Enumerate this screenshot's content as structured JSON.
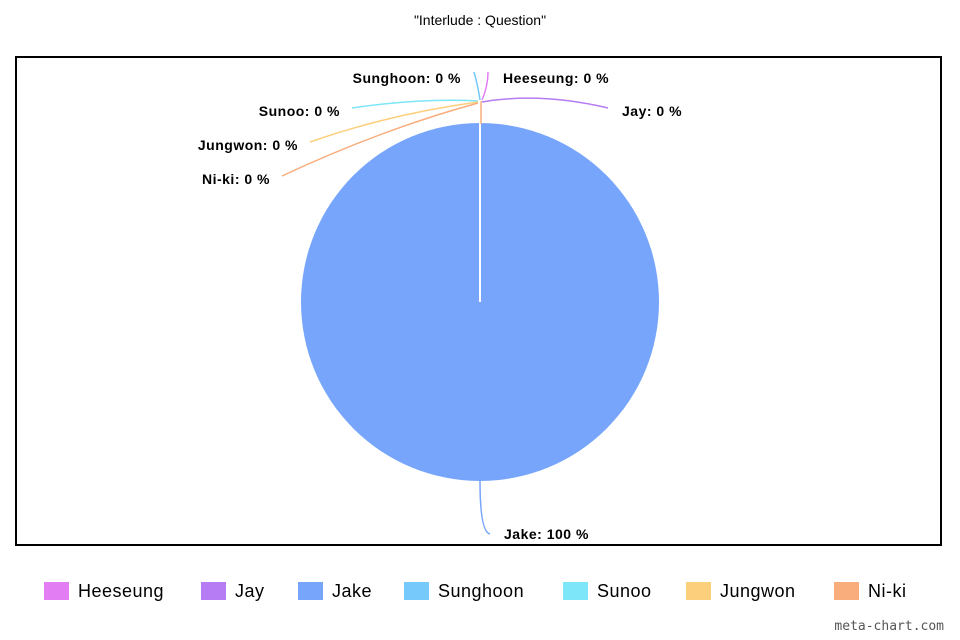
{
  "chart_data": {
    "type": "pie",
    "title": "\"Interlude : Question\"",
    "slices": [
      {
        "name": "Heeseung",
        "value": 0,
        "label": "Heeseung: 0 %",
        "color": "#e27df3"
      },
      {
        "name": "Jay",
        "value": 0,
        "label": "Jay: 0 %",
        "color": "#b57cf3"
      },
      {
        "name": "Jake",
        "value": 100,
        "label": "Jake: 100 %",
        "color": "#76a5fb"
      },
      {
        "name": "Sunghoon",
        "value": 0,
        "label": "Sunghoon: 0 %",
        "color": "#75cafb"
      },
      {
        "name": "Sunoo",
        "value": 0,
        "label": "Sunoo: 0 %",
        "color": "#7de6f9"
      },
      {
        "name": "Jungwon",
        "value": 0,
        "label": "Jungwon: 0 %",
        "color": "#fccf7c"
      },
      {
        "name": "Ni-ki",
        "value": 0,
        "label": "Ni-ki: 0 %",
        "color": "#f9ad7c"
      }
    ],
    "legend_position": "bottom"
  },
  "watermark": "meta-chart.com"
}
